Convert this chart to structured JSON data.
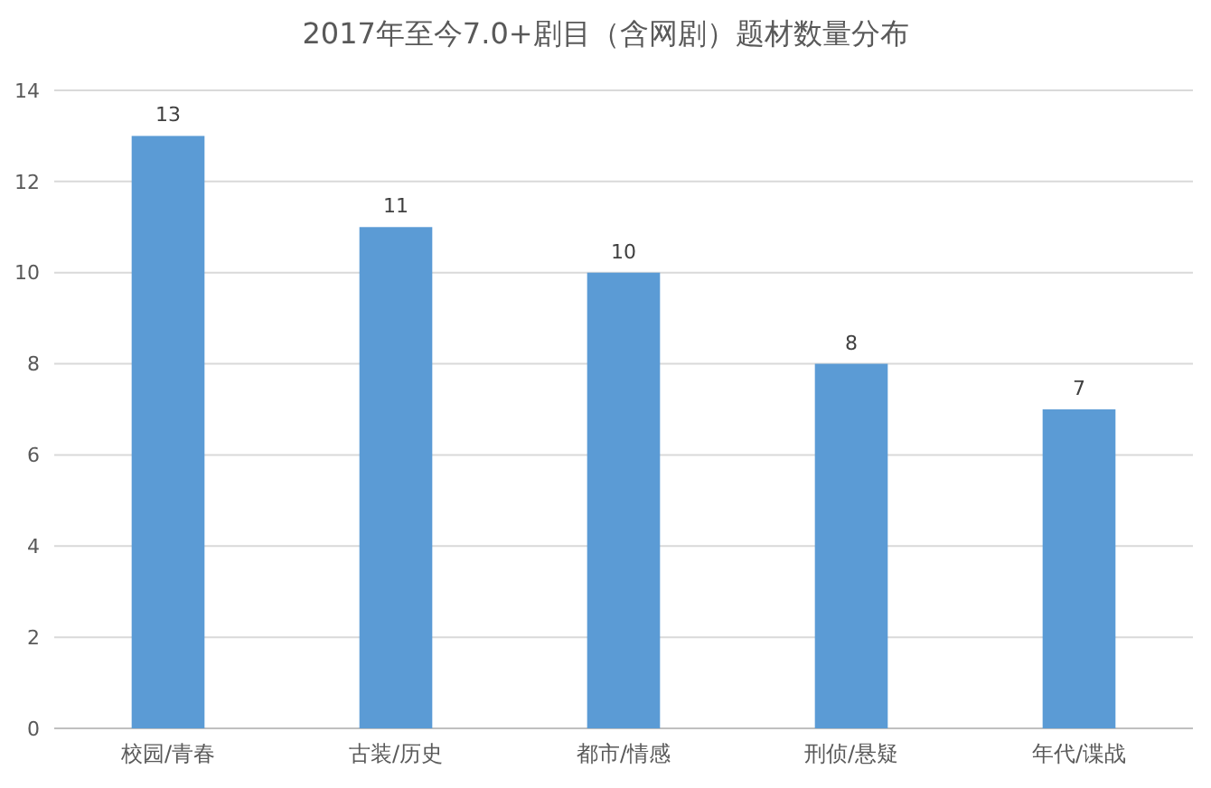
{
  "chart_data": {
    "type": "bar",
    "title": "2017年至今7.0+剧目（含网剧）题材数量分布",
    "categories": [
      "校园/青春",
      "古装/历史",
      "都市/情感",
      "刑侦/悬疑",
      "年代/谍战"
    ],
    "values": [
      13,
      11,
      10,
      8,
      7
    ],
    "color": "#5b9bd5",
    "ylim": [
      0,
      14
    ],
    "yticks": [
      0,
      2,
      4,
      6,
      8,
      10,
      12,
      14
    ],
    "grid": "y",
    "data_labels": true
  }
}
